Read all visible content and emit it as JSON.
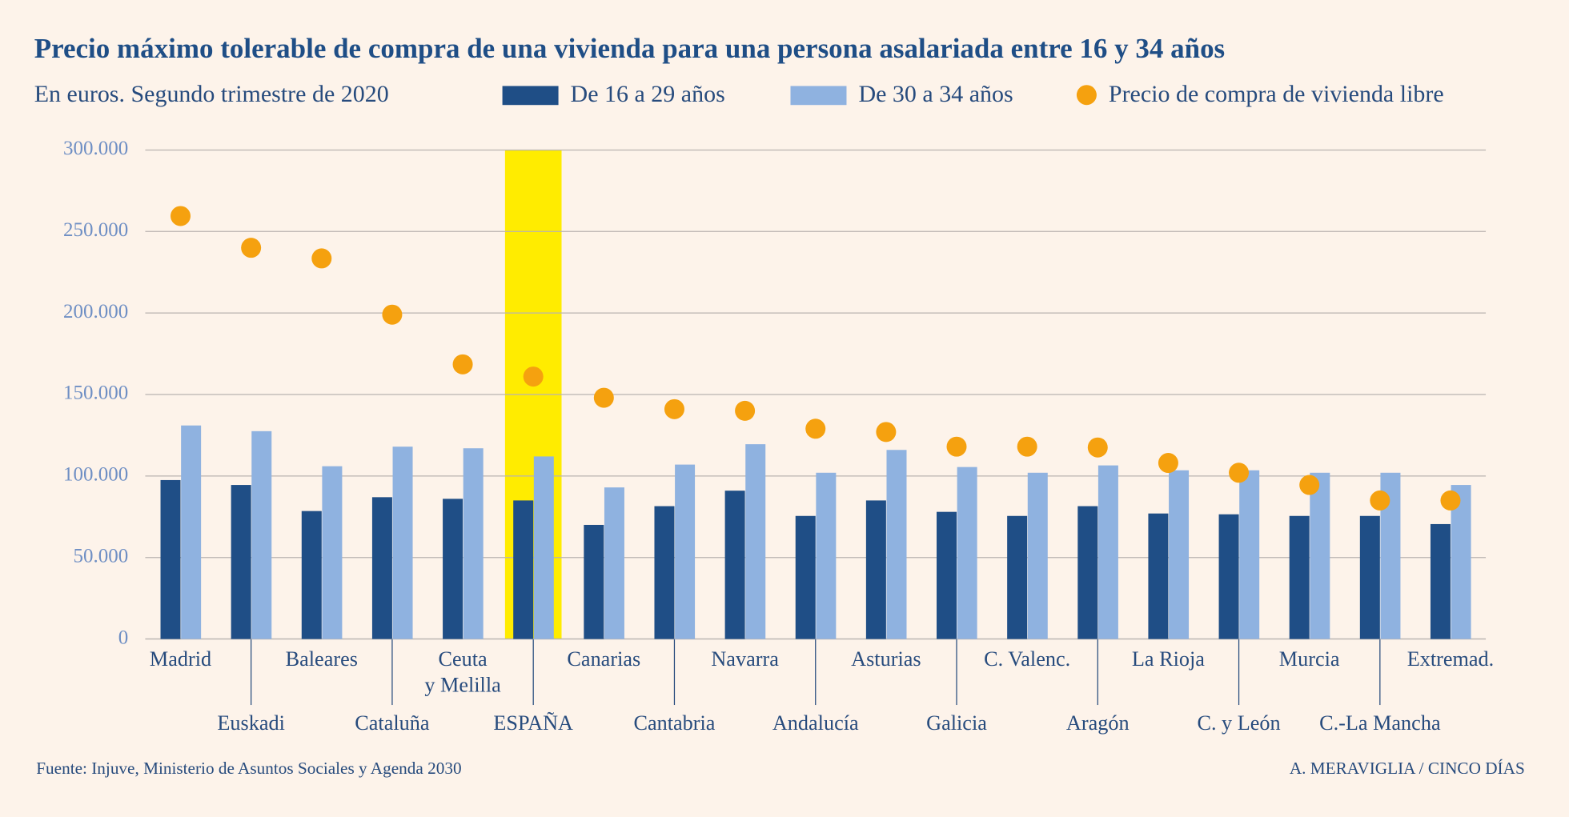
{
  "chart_data": {
    "type": "bar",
    "title": "Precio máximo tolerable de compra de una vivienda para una persona asalariada entre 16 y 34 años",
    "subtitle": "En euros. Segundo trimestre de 2020",
    "categories": [
      "Madrid",
      "Euskadi",
      "Baleares",
      "Cataluña",
      "Ceuta\ny Melilla",
      "ESPAÑA",
      "Canarias",
      "Cantabria",
      "Navarra",
      "Andalucía",
      "Asturias",
      "Galicia",
      "C. Valenc.",
      "Aragón",
      "La Rioja",
      "C. y León",
      "Murcia",
      "C.-La Mancha",
      "Extremad."
    ],
    "highlight": "ESPAÑA",
    "highlight_color": "#ffec00",
    "series": [
      {
        "name": "De 16 a 29 años",
        "color": "#1f4e86",
        "type": "bar",
        "values": [
          97500,
          94500,
          78500,
          87000,
          86000,
          85000,
          70000,
          81500,
          91000,
          75500,
          85000,
          78000,
          75500,
          81500,
          77000,
          76500,
          75500,
          75500,
          70500
        ]
      },
      {
        "name": "De 30 a 34 años",
        "color": "#8fb2e0",
        "type": "bar",
        "values": [
          131000,
          127500,
          106000,
          118000,
          117000,
          112000,
          93000,
          107000,
          119500,
          102000,
          116000,
          105500,
          102000,
          106500,
          103500,
          103500,
          102000,
          102000,
          94500
        ]
      },
      {
        "name": "Precio de compra de vivienda libre",
        "color": "#f5a10f",
        "type": "scatter",
        "values": [
          259500,
          240000,
          233500,
          199000,
          168500,
          161000,
          148000,
          141000,
          140000,
          129000,
          127000,
          118000,
          118000,
          117500,
          108000,
          102000,
          94500,
          85000,
          85000
        ]
      }
    ],
    "ylim": [
      0,
      300000
    ],
    "yticks": [
      0,
      {
        "value": 50000,
        "label": "50.000"
      },
      {
        "value": 100000,
        "label": "100.000"
      },
      {
        "value": 150000,
        "label": "150.000"
      },
      {
        "value": 200000,
        "label": "200.000"
      },
      {
        "value": 250000,
        "label": "250.000"
      },
      {
        "value": 300000,
        "label": "300.000"
      }
    ],
    "grid": true,
    "source": "Fuente: Injuve, Ministerio de Asuntos Sociales y Agenda 2030",
    "credit": "A. MERAVIGLIA / CINCO DÍAS"
  }
}
